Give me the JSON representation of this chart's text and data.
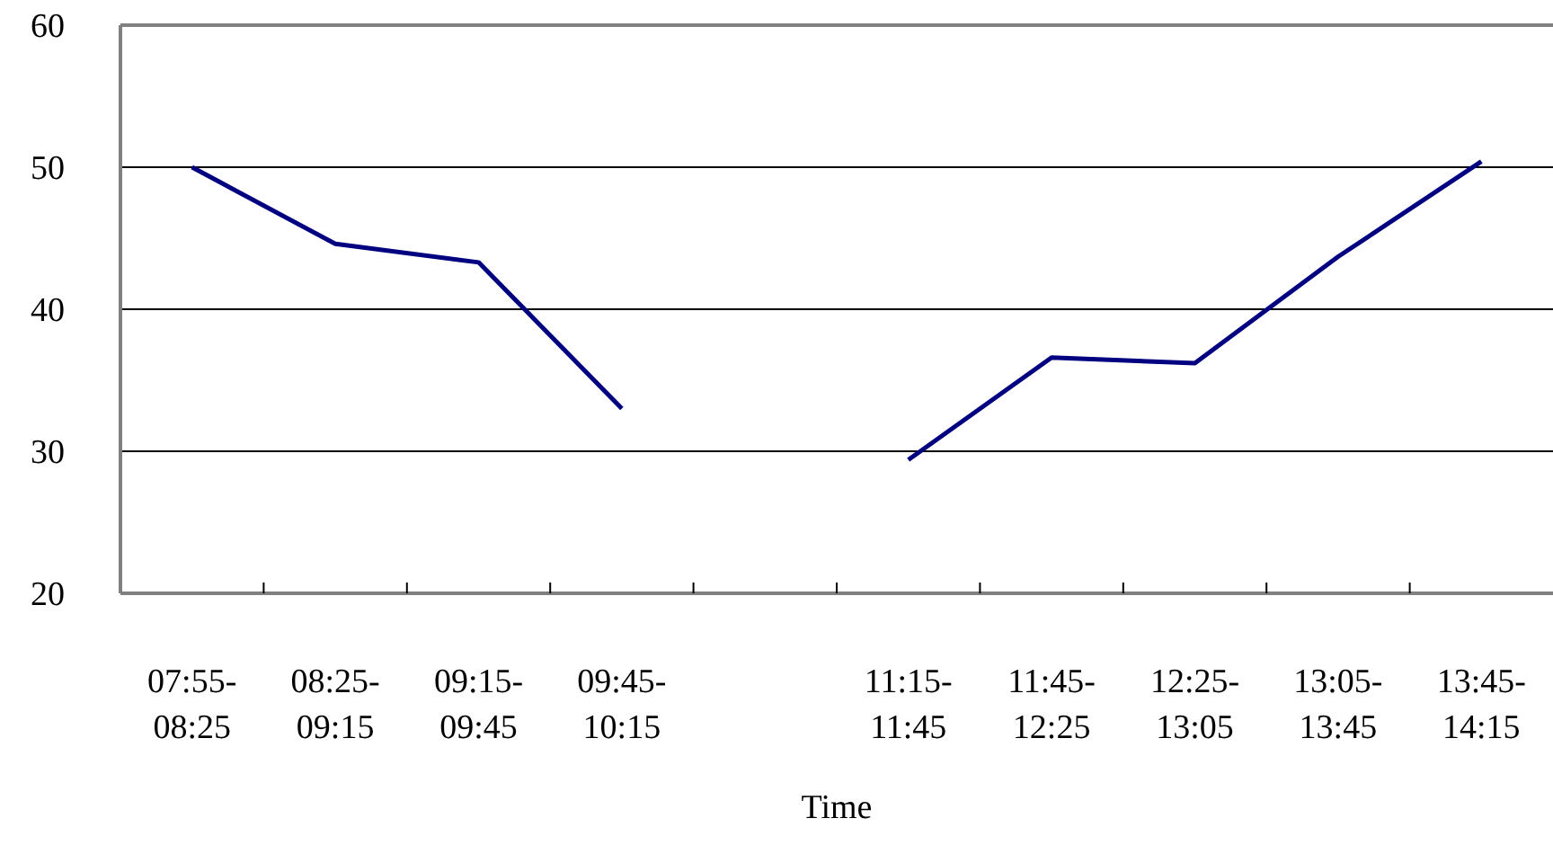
{
  "chart_data": {
    "type": "line",
    "xlabel": "Time",
    "categories": [
      "07:55-08:25",
      "08:25-09:15",
      "09:15-09:45",
      "09:45-10:15",
      null,
      "11:15-11:45",
      "11:45-12:25",
      "12:25-13:05",
      "13:05-13:45",
      "13:45-14:15"
    ],
    "series": [
      {
        "color": "#000080",
        "values": [
          50,
          44.6,
          43.3,
          33,
          null,
          29.4,
          36.6,
          36.2,
          43.7,
          50.4
        ]
      }
    ],
    "ylim": [
      20,
      60
    ],
    "yticks": [
      20,
      30,
      40,
      50,
      60
    ],
    "grid": "y",
    "marker": "none",
    "line_style": "solid"
  }
}
